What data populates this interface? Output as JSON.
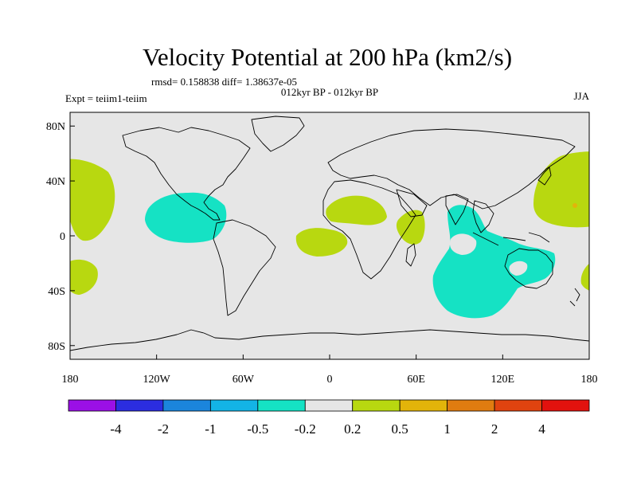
{
  "map": {
    "title": "Velocity Potential at 200 hPa (km2/s)",
    "stats": "rmsd= 0.158838 diff= 1.38637e-05",
    "period": "012kyr BP - 012kyr BP",
    "experiment": "Expt = teiim1-teiim",
    "season": "JJA",
    "projection": "cylindrical equidistant",
    "lat_ticks": [
      "80N",
      "40N",
      "0",
      "40S",
      "80S"
    ],
    "lon_ticks": [
      "180",
      "120W",
      "60W",
      "0",
      "60E",
      "120E",
      "180"
    ],
    "background_color": "#e6e6e6",
    "coastline_color": "#000000"
  },
  "colorbar": {
    "labels": [
      "-4",
      "-2",
      "-1",
      "-0.5",
      "-0.2",
      "0.2",
      "0.5",
      "1",
      "2",
      "4"
    ],
    "colors": [
      "#9b10e6",
      "#2b2de0",
      "#1b85dc",
      "#13b4e6",
      "#15e2c4",
      "#e6e6e6",
      "#b8d810",
      "#e2b40a",
      "#e07c10",
      "#e0430f",
      "#e2120e"
    ]
  },
  "anomaly_regions": [
    {
      "name": "North Pacific subtropics",
      "sign": "positive",
      "class": "0.2 to 0.5",
      "color": "#b8d810"
    },
    {
      "name": "South Pacific",
      "sign": "positive",
      "class": "0.2 to 0.5",
      "color": "#b8d810"
    },
    {
      "name": "Caribbean / Central America",
      "sign": "negative",
      "class": "-0.5 to -0.2",
      "color": "#15e2c4"
    },
    {
      "name": "Equatorial Atlantic",
      "sign": "positive",
      "class": "0.2 to 0.5",
      "color": "#b8d810"
    },
    {
      "name": "Sahel / North Africa",
      "sign": "positive",
      "class": "0.2 to 0.5",
      "color": "#b8d810"
    },
    {
      "name": "East Africa",
      "sign": "positive",
      "class": "0.2 to 0.5",
      "color": "#b8d810"
    },
    {
      "name": "Indian Ocean / Maritime Continent",
      "sign": "negative",
      "class": "-0.5 to -0.2",
      "color": "#15e2c4"
    },
    {
      "name": "Northern Australia",
      "sign": "negative",
      "class": "-0.5 to -0.2",
      "color": "#15e2c4"
    },
    {
      "name": "Northwest Pacific",
      "sign": "positive",
      "class": "0.2 to 0.5",
      "color": "#b8d810"
    },
    {
      "name": "Southwest Pacific near New Zealand",
      "sign": "positive",
      "class": "0.2 to 0.5",
      "color": "#b8d810"
    }
  ]
}
